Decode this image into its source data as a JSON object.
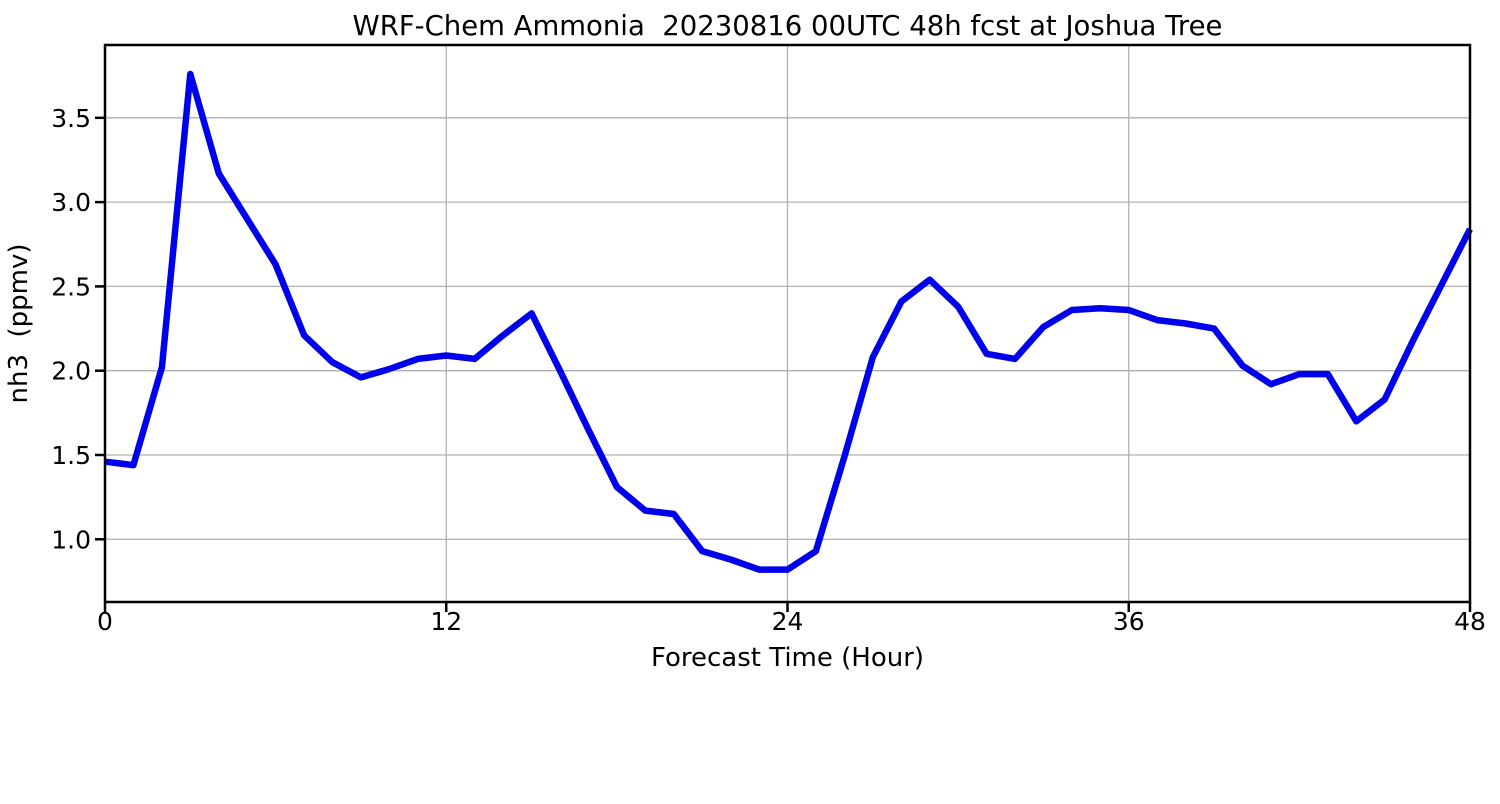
{
  "figure": {
    "title": "WRF-Chem Ammonia  20230816 00UTC 48h fcst at Joshua Tree",
    "xlabel": "Forecast Time (Hour)",
    "ylabel": "nh3  (ppmv)"
  },
  "chart_data": {
    "type": "line",
    "title": "WRF-Chem Ammonia  20230816 00UTC 48h fcst at Joshua Tree",
    "xlabel": "Forecast Time (Hour)",
    "ylabel": "nh3  (ppmv)",
    "series": [
      {
        "name": "nh3_ppmv",
        "x": [
          0,
          1,
          2,
          3,
          4,
          5,
          6,
          7,
          8,
          9,
          10,
          11,
          12,
          13,
          14,
          15,
          16,
          17,
          18,
          19,
          20,
          21,
          22,
          23,
          24,
          25,
          26,
          27,
          28,
          29,
          30,
          31,
          32,
          33,
          34,
          35,
          36,
          37,
          38,
          39,
          40,
          41,
          42,
          43,
          44,
          45,
          46,
          47,
          48
        ],
        "values": [
          1.46,
          1.44,
          2.02,
          3.76,
          3.17,
          2.9,
          2.63,
          2.21,
          2.05,
          1.96,
          2.01,
          2.07,
          2.09,
          2.07,
          2.21,
          2.34,
          2.0,
          1.65,
          1.31,
          1.17,
          1.15,
          0.93,
          0.88,
          0.82,
          0.82,
          0.93,
          1.49,
          2.08,
          2.41,
          2.54,
          2.38,
          2.1,
          2.07,
          2.26,
          2.36,
          2.37,
          2.36,
          2.3,
          2.28,
          2.25,
          2.03,
          1.92,
          1.98,
          1.98,
          1.7,
          1.83,
          2.18,
          2.51,
          2.84
        ]
      }
    ],
    "xticks": [
      0,
      12,
      24,
      36,
      48
    ],
    "yticks": [
      1.0,
      1.5,
      2.0,
      2.5,
      3.0,
      3.5
    ],
    "xtick_labels": [
      "0",
      "12",
      "24",
      "36",
      "48"
    ],
    "ytick_labels": [
      "1.0",
      "1.5",
      "2.0",
      "2.5",
      "3.0",
      "3.5"
    ],
    "xlim": [
      0,
      48
    ],
    "ylim": [
      0.628,
      3.932
    ],
    "grid": true,
    "legend_position": "none",
    "colors": {
      "line": "#0000ee",
      "grid": "#b0b0b0",
      "spine": "#000000",
      "background": "#ffffff"
    },
    "line_width": 6.5
  }
}
